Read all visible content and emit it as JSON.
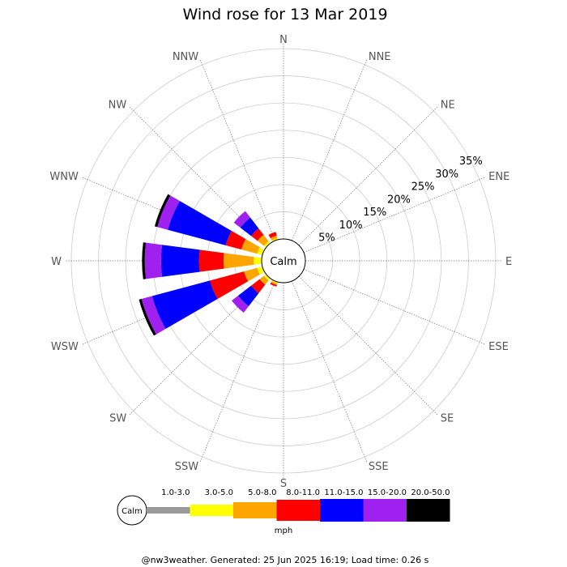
{
  "chart_data": {
    "type": "wind_rose",
    "title": "Wind rose for 13 Mar 2019",
    "directions": [
      "N",
      "NNE",
      "NE",
      "ENE",
      "E",
      "ESE",
      "SE",
      "SSE",
      "S",
      "SSW",
      "SW",
      "WSW",
      "W",
      "WNW",
      "NW",
      "NNW"
    ],
    "ring_labels": [
      "5%",
      "10%",
      "15%",
      "20%",
      "25%",
      "30%",
      "35%"
    ],
    "ring_max_percent": 35,
    "calm_label": "Calm",
    "speed_unit": "mph",
    "speed_bins": [
      {
        "label": "1.0-3.0",
        "color": "#999999"
      },
      {
        "label": "3.0-5.0",
        "color": "#ffff00"
      },
      {
        "label": "5.0-8.0",
        "color": "#ffa500"
      },
      {
        "label": "8.0-11.0",
        "color": "#ff0000"
      },
      {
        "label": "11.0-15.0",
        "color": "#0000ff"
      },
      {
        "label": "15.0-20.0",
        "color": "#a020f0"
      },
      {
        "label": "20.0-50.0",
        "color": "#000000"
      }
    ],
    "frequency_cumulative_percent": {
      "N": [
        0,
        0,
        0,
        0,
        0,
        0,
        0
      ],
      "NNE": [
        0,
        0,
        0,
        0,
        0,
        0,
        0
      ],
      "NE": [
        0,
        0,
        0,
        0,
        0,
        0,
        0
      ],
      "ENE": [
        0,
        0,
        0,
        0,
        0,
        0,
        0
      ],
      "E": [
        0,
        0,
        0,
        0,
        0,
        0,
        0
      ],
      "ESE": [
        0,
        0,
        0,
        0,
        0,
        0,
        0
      ],
      "SE": [
        0,
        0,
        0,
        0,
        0,
        0,
        0
      ],
      "SSE": [
        0,
        0,
        0,
        0,
        0,
        0,
        0
      ],
      "S": [
        0,
        0,
        0,
        0,
        0,
        0,
        0
      ],
      "SSW": [
        0,
        0.3,
        0.6,
        0.9,
        0.9,
        0.9,
        0.9
      ],
      "SW": [
        0,
        0.5,
        1.5,
        3.5,
        6.5,
        8.0,
        8.0
      ],
      "WSW": [
        0,
        1.0,
        3.5,
        10.0,
        21.0,
        23.0,
        23.5
      ],
      "W": [
        0,
        1.5,
        7.0,
        11.5,
        18.5,
        21.5,
        22.0
      ],
      "WNW": [
        0,
        1.0,
        4.0,
        7.0,
        18.0,
        20.0,
        20.5
      ],
      "NW": [
        0,
        0.5,
        2.0,
        3.5,
        6.0,
        7.5,
        7.5
      ],
      "NNW": [
        0,
        0.3,
        0.8,
        1.5,
        1.5,
        1.5,
        1.5
      ]
    }
  },
  "footer": "@nw3weather. Generated: 25 Jun 2025 16:19; Load time: 0.26 s"
}
